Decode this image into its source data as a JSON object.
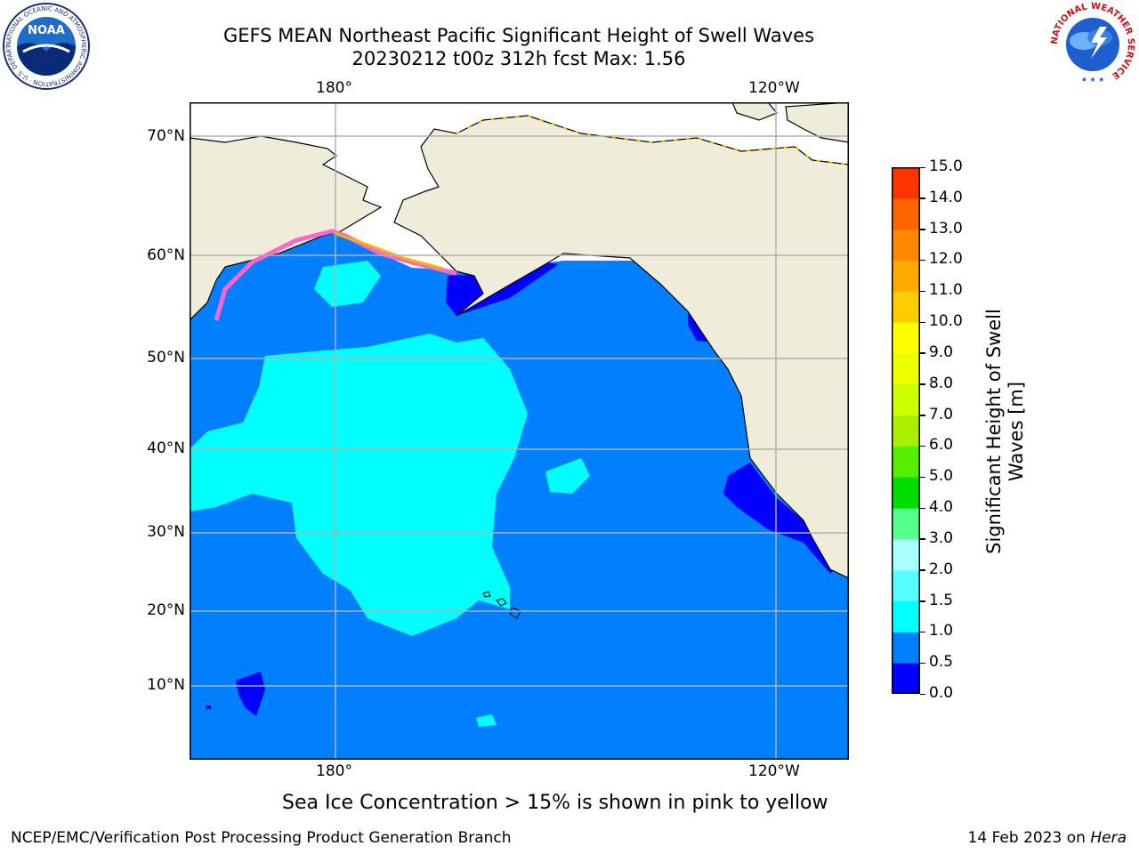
{
  "title": {
    "line1": "GEFS MEAN Northeast Pacific Significant Height of Swell Waves",
    "line2": "20230212 t00z 312h fcst   Max: 1.56"
  },
  "map": {
    "lon_ticks_top": [
      "180°",
      "120°W"
    ],
    "lon_ticks_bottom": [
      "180°",
      "120°W"
    ],
    "lat_ticks": [
      "70°N",
      "60°N",
      "50°N",
      "40°N",
      "30°N",
      "20°N",
      "10°N"
    ],
    "colors": {
      "land": "#efedda",
      "ocean_main": "#0080ff",
      "ocean_low": "#0000ff",
      "swell_1_5": "#00ffff",
      "ice_pink": "#ff66cc",
      "ice_orange": "#ffb300",
      "grid": "#b0b0b0"
    }
  },
  "colorbar": {
    "label": "Significant Height of Swell Waves [m]",
    "ticks": [
      "15.0",
      "14.0",
      "13.0",
      "12.0",
      "11.0",
      "10.0",
      "9.0",
      "8.0",
      "7.0",
      "6.0",
      "5.0",
      "4.0",
      "3.0",
      "2.0",
      "1.5",
      "1.0",
      "0.5",
      "0.0"
    ],
    "bands_bottom_to_top": [
      "#0000ff",
      "#0080ff",
      "#00ffff",
      "#55ffff",
      "#aaffff",
      "#55ff88",
      "#00dd00",
      "#55ee00",
      "#aaee00",
      "#ccff00",
      "#eeff00",
      "#ffff00",
      "#ffcc00",
      "#ffaa00",
      "#ff8800",
      "#ff6600",
      "#ff3300",
      "#ff0000"
    ]
  },
  "note": "Sea Ice Concentration > 15% is shown in pink to yellow",
  "footer": {
    "left": "NCEP/EMC/Verification Post Processing Product Generation Branch",
    "right_date": "14 Feb 2023 on ",
    "right_host": "Hera"
  },
  "logos": {
    "noaa_text": "NOAA",
    "noaa_ring": "NATIONAL OCEANIC AND ATMOSPHERIC ADMINISTRATION · U.S. DEPARTMENT OF COMMERCE",
    "nws_ring": "NATIONAL WEATHER SERVICE"
  }
}
